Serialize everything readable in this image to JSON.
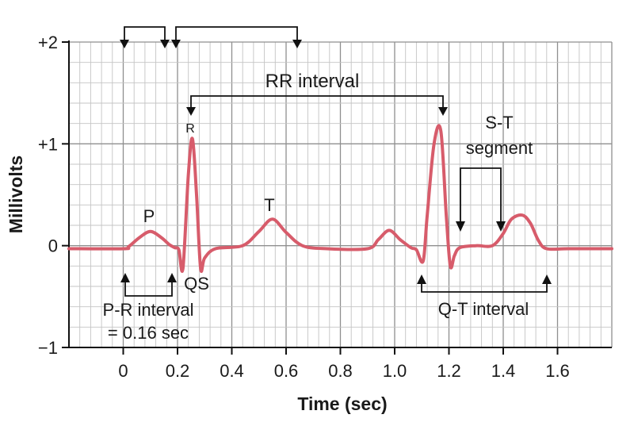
{
  "chart_data": {
    "type": "line",
    "title": "",
    "xlabel": "Time (sec)",
    "ylabel": "Millivolts",
    "x_ticks": [
      "0",
      "0.2",
      "0.4",
      "0.6",
      "0.8",
      "1.0",
      "1.2",
      "1.4",
      "1.6"
    ],
    "y_ticks": [
      "+2",
      "+1",
      "0",
      "−1"
    ],
    "xlim": [
      -0.2,
      1.8
    ],
    "ylim": [
      -1,
      2
    ],
    "grid": true,
    "line_color": "#d75c6b",
    "series": [
      {
        "x": [
          -0.2,
          0.0,
          0.02,
          0.06,
          0.1,
          0.14,
          0.17,
          0.19,
          0.205,
          0.22,
          0.24,
          0.255,
          0.27,
          0.285,
          0.3,
          0.34,
          0.44,
          0.5,
          0.55,
          0.6,
          0.66,
          0.75,
          0.9,
          0.94,
          0.98,
          1.02,
          1.06,
          1.08,
          1.105,
          1.12,
          1.145,
          1.17,
          1.19,
          1.205,
          1.22,
          1.24,
          1.3,
          1.36,
          1.4,
          1.43,
          1.47,
          1.5,
          1.53,
          1.56,
          1.64,
          1.8
        ],
        "y": [
          -0.03,
          -0.03,
          -0.01,
          0.08,
          0.14,
          0.08,
          0.01,
          -0.02,
          -0.04,
          -0.22,
          0.7,
          1.05,
          0.5,
          -0.22,
          -0.12,
          -0.03,
          0.0,
          0.14,
          0.26,
          0.13,
          0.0,
          -0.03,
          -0.03,
          0.06,
          0.15,
          0.06,
          -0.02,
          -0.04,
          -0.15,
          0.3,
          1.0,
          1.13,
          0.3,
          -0.2,
          -0.1,
          -0.02,
          0.0,
          0.0,
          0.12,
          0.26,
          0.3,
          0.22,
          0.05,
          -0.03,
          -0.03,
          -0.03
        ]
      }
    ]
  },
  "labels": {
    "p": "P",
    "r": "R",
    "qs": "QS",
    "t": "T",
    "rr_interval": "RR interval",
    "st_segment_line1": "S-T",
    "st_segment_line2": "segment",
    "pr_interval_line1": "P-R interval",
    "pr_interval_line2": "= 0.16 sec",
    "qt_interval": "Q-T interval"
  }
}
